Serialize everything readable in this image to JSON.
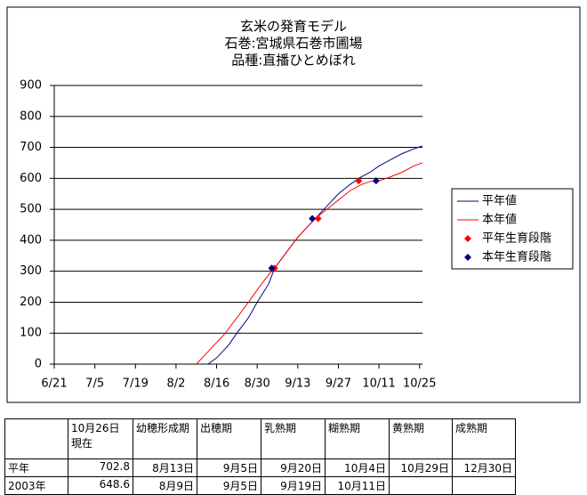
{
  "chart_data": {
    "type": "line",
    "title": [
      "玄米の発育モデル",
      "石巻:宮城県石巻市圃場",
      "品種:直播ひとめぼれ"
    ],
    "xlim": [
      0,
      127
    ],
    "ylim": [
      0,
      900
    ],
    "xticks": [
      {
        "value": 0,
        "label": "6/21"
      },
      {
        "value": 14,
        "label": "7/5"
      },
      {
        "value": 28,
        "label": "7/19"
      },
      {
        "value": 42,
        "label": "8/2"
      },
      {
        "value": 56,
        "label": "8/16"
      },
      {
        "value": 70,
        "label": "8/30"
      },
      {
        "value": 84,
        "label": "9/13"
      },
      {
        "value": 98,
        "label": "9/27"
      },
      {
        "value": 112,
        "label": "10/11"
      },
      {
        "value": 126,
        "label": "10/25"
      }
    ],
    "yticks": [
      0,
      100,
      200,
      300,
      400,
      500,
      600,
      700,
      800,
      900
    ],
    "grid": true,
    "legend": "right",
    "series": [
      {
        "name": "平年値",
        "color": "#000080",
        "style": "line",
        "x": [
          53,
          56,
          60,
          63,
          67,
          70,
          74,
          76,
          80,
          84,
          88,
          91,
          95,
          98,
          102,
          105,
          109,
          112,
          116,
          120,
          124,
          127
        ],
        "values": [
          0,
          20,
          60,
          100,
          150,
          200,
          260,
          310,
          360,
          410,
          450,
          480,
          520,
          550,
          580,
          600,
          620,
          640,
          660,
          680,
          695,
          705
        ]
      },
      {
        "name": "本年値",
        "color": "#ff0000",
        "style": "line",
        "x": [
          49,
          52,
          56,
          59,
          63,
          67,
          70,
          74,
          76,
          80,
          84,
          87,
          90,
          94,
          98,
          102,
          106,
          109,
          112,
          116,
          120,
          124,
          127
        ],
        "values": [
          0,
          30,
          70,
          100,
          150,
          200,
          240,
          290,
          310,
          360,
          410,
          440,
          470,
          500,
          530,
          560,
          580,
          590,
          592,
          605,
          620,
          640,
          650
        ]
      },
      {
        "name": "平年生育段階",
        "color": "#ff0000",
        "style": "diamond",
        "x": [
          76,
          91,
          105
        ],
        "values": [
          310,
          470,
          592
        ]
      },
      {
        "name": "本年生育段階",
        "color": "#000080",
        "style": "diamond",
        "x": [
          75,
          89,
          111
        ],
        "values": [
          310,
          470,
          592
        ]
      }
    ]
  },
  "table": {
    "columns": [
      [
        "10月26日",
        "現在"
      ],
      [
        "幼穂形成期"
      ],
      [
        "出穂期"
      ],
      [
        "乳熟期"
      ],
      [
        "糊熟期"
      ],
      [
        "黄熟期"
      ],
      [
        "成熟期"
      ]
    ],
    "rows": [
      [
        "平年",
        702.8,
        "8月13日",
        "9月5日",
        "9月20日",
        "10月4日",
        "10月29日",
        "12月30日"
      ],
      [
        "2003年",
        648.6,
        "8月9日",
        "9月5日",
        "9月19日",
        "10月11日"
      ]
    ]
  }
}
